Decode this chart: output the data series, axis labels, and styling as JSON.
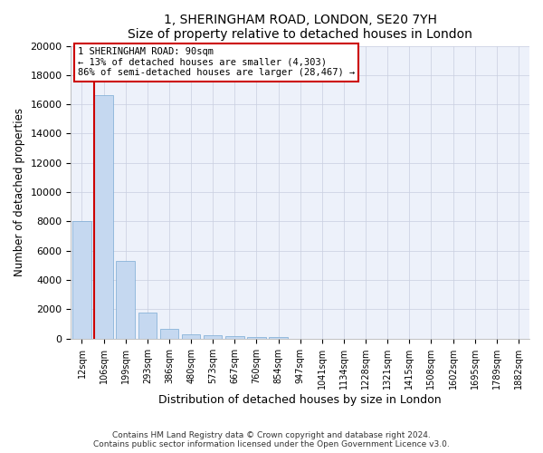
{
  "title": "1, SHERINGHAM ROAD, LONDON, SE20 7YH",
  "subtitle": "Size of property relative to detached houses in London",
  "xlabel": "Distribution of detached houses by size in London",
  "ylabel": "Number of detached properties",
  "bar_color": "#c5d8f0",
  "bar_edge_color": "#7aaad4",
  "categories": [
    "12sqm",
    "106sqm",
    "199sqm",
    "293sqm",
    "386sqm",
    "480sqm",
    "573sqm",
    "667sqm",
    "760sqm",
    "854sqm",
    "947sqm",
    "1041sqm",
    "1134sqm",
    "1228sqm",
    "1321sqm",
    "1415sqm",
    "1508sqm",
    "1602sqm",
    "1695sqm",
    "1789sqm",
    "1882sqm"
  ],
  "values": [
    8050,
    16600,
    5300,
    1800,
    650,
    320,
    200,
    150,
    120,
    100,
    0,
    0,
    0,
    0,
    0,
    0,
    0,
    0,
    0,
    0,
    0
  ],
  "property_line_color": "#cc0000",
  "annotation_title": "1 SHERINGHAM ROAD: 90sqm",
  "annotation_line1": "← 13% of detached houses are smaller (4,303)",
  "annotation_line2": "86% of semi-detached houses are larger (28,467) →",
  "annotation_box_color": "#cc0000",
  "ylim": [
    0,
    20000
  ],
  "yticks": [
    0,
    2000,
    4000,
    6000,
    8000,
    10000,
    12000,
    14000,
    16000,
    18000,
    20000
  ],
  "footer_line1": "Contains HM Land Registry data © Crown copyright and database right 2024.",
  "footer_line2": "Contains public sector information licensed under the Open Government Licence v3.0.",
  "bg_color": "#edf1fa",
  "grid_color": "#c8cedf"
}
